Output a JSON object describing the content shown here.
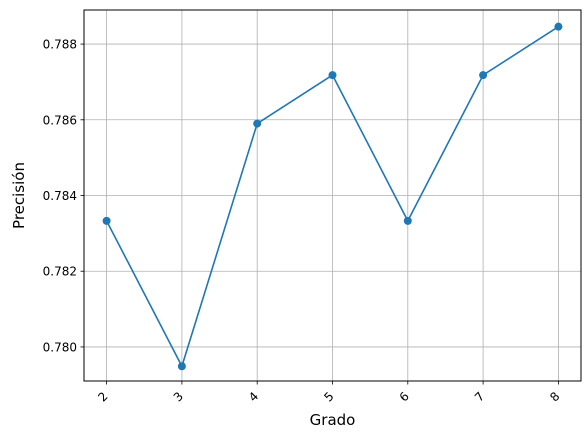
{
  "chart_data": {
    "type": "line",
    "title": "",
    "xlabel": "Grado",
    "ylabel": "Precisión",
    "x": [
      2,
      3,
      4,
      5,
      6,
      7,
      8
    ],
    "x_tick_labels": [
      "2",
      "3",
      "4",
      "5",
      "6",
      "7",
      "8"
    ],
    "series": [
      {
        "values": [
          0.78333,
          0.77949,
          0.7859,
          0.78718,
          0.78333,
          0.78718,
          0.78846
        ]
      }
    ],
    "xlim": [
      1.7,
      8.3
    ],
    "ylim": [
      0.7791,
      0.7889
    ],
    "y_ticks": [
      0.78,
      0.782,
      0.784,
      0.786,
      0.788
    ],
    "y_tick_labels": [
      "0.780",
      "0.782",
      "0.784",
      "0.786",
      "0.788"
    ],
    "grid": true,
    "x_tick_rotation": 45,
    "colors": {
      "line": "#1f77b4",
      "grid": "#b0b0b0",
      "axes": "#000000"
    }
  }
}
